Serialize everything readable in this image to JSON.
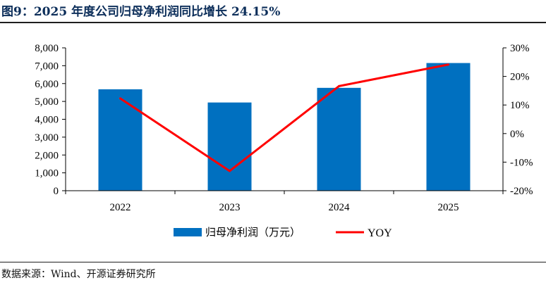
{
  "title": "图9：2025 年度公司归母净利润同比增长 24.15%",
  "source": "数据来源：Wind、开源证券研究所",
  "colors": {
    "bar": "#0070c0",
    "line": "#ff0000",
    "title": "#0c2e5a"
  },
  "chart_data": {
    "type": "bar+line",
    "categories": [
      "2022",
      "2023",
      "2024",
      "2025"
    ],
    "series": [
      {
        "name": "归母净利润（万元）",
        "type": "bar",
        "axis": "left",
        "values": [
          5680,
          4940,
          5760,
          7150
        ]
      },
      {
        "name": "YOY",
        "type": "line",
        "axis": "right",
        "values": [
          12.3,
          -13.1,
          16.6,
          24.15
        ]
      }
    ],
    "y_left": {
      "ylim": [
        0,
        8000
      ],
      "ticks": [
        0,
        1000,
        2000,
        3000,
        4000,
        5000,
        6000,
        7000,
        8000
      ],
      "tick_labels": [
        "0",
        "1,000",
        "2,000",
        "3,000",
        "4,000",
        "5,000",
        "6,000",
        "7,000",
        "8,000"
      ]
    },
    "y_right": {
      "ylim": [
        -20,
        30
      ],
      "ticks": [
        -20,
        -10,
        0,
        10,
        20,
        30
      ],
      "tick_labels": [
        "-20%",
        "-10%",
        "0%",
        "10%",
        "20%",
        "30%"
      ]
    },
    "grid": false,
    "legend": "bottom"
  }
}
